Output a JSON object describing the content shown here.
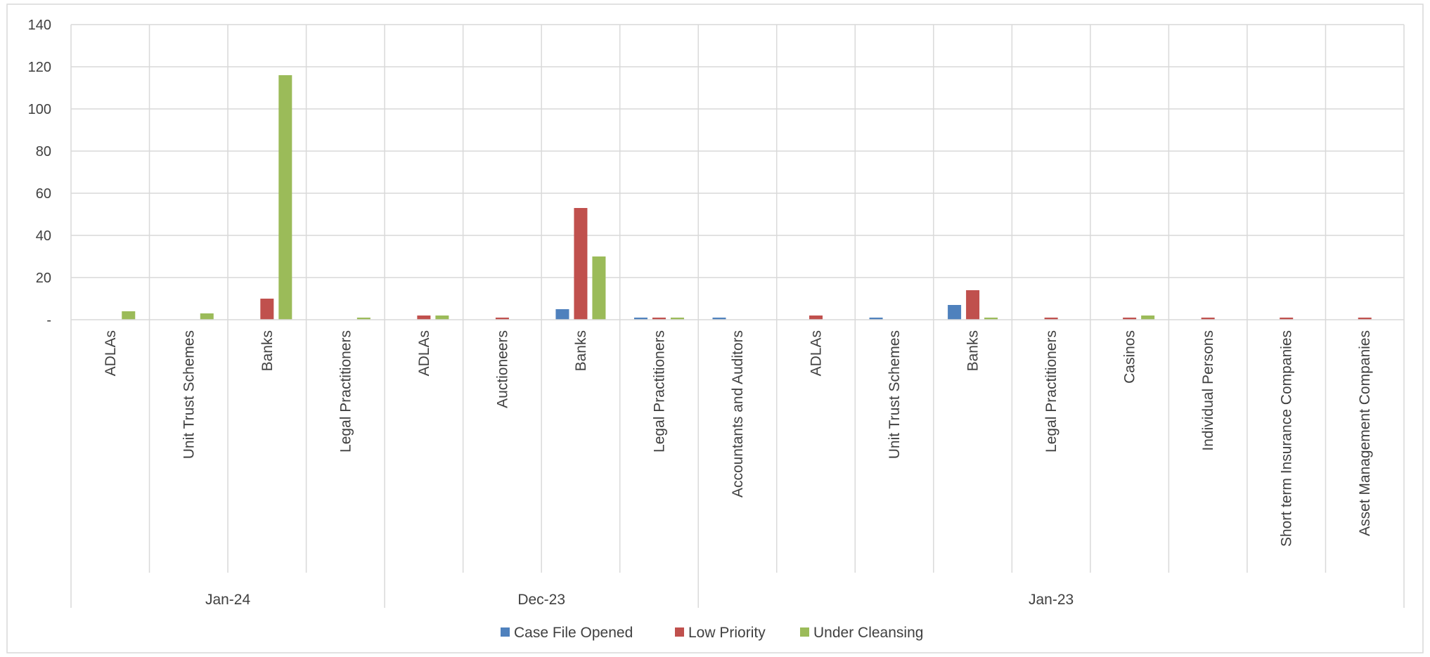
{
  "chart_data": {
    "type": "bar",
    "title": "",
    "xlabel": "",
    "ylabel": "",
    "ylim": [
      0,
      140
    ],
    "y_ticks": [
      {
        "value": 0,
        "label": "-"
      },
      {
        "value": 20,
        "label": "20"
      },
      {
        "value": 40,
        "label": "40"
      },
      {
        "value": 60,
        "label": "60"
      },
      {
        "value": 80,
        "label": "80"
      },
      {
        "value": 100,
        "label": "100"
      },
      {
        "value": 120,
        "label": "120"
      },
      {
        "value": 140,
        "label": "140"
      }
    ],
    "grid": true,
    "legend_position": "bottom",
    "groups": [
      {
        "label": "Jan-24",
        "count": 4
      },
      {
        "label": "Dec-23",
        "count": 4
      },
      {
        "label": "Jan-23",
        "count": 9
      }
    ],
    "categories": [
      "ADLAs",
      "Unit Trust Schemes",
      "Banks",
      "Legal Practitioners",
      "ADLAs",
      "Auctioneers",
      "Banks",
      "Legal Practitioners",
      "Accountants and Auditors",
      "ADLAs",
      "Unit Trust Schemes",
      "Banks",
      "Legal Practitioners",
      "Casinos",
      "Individual Persons",
      "Short term Insurance Companies",
      "Asset Management Companies"
    ],
    "series": [
      {
        "name": "Case File Opened",
        "color": "#4F81BD",
        "values": [
          0,
          0,
          0,
          0,
          0,
          0,
          5,
          1,
          1,
          0,
          1,
          7,
          0,
          0,
          0,
          0,
          0
        ]
      },
      {
        "name": "Low Priority",
        "color": "#C0504D",
        "values": [
          0,
          0,
          10,
          0,
          2,
          1,
          53,
          1,
          0,
          2,
          0,
          14,
          1,
          1,
          1,
          1,
          1
        ]
      },
      {
        "name": "Under Cleansing",
        "color": "#9BBB59",
        "values": [
          4,
          3,
          116,
          1,
          2,
          0,
          30,
          1,
          0,
          0,
          0,
          1,
          0,
          2,
          0,
          0,
          0
        ]
      }
    ]
  }
}
